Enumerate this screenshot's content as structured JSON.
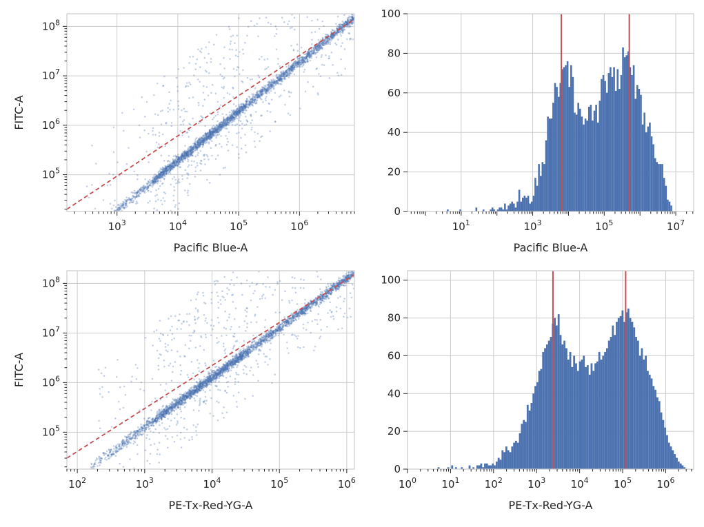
{
  "colors": {
    "primary": "#4c72b0",
    "reference": "#c44e52",
    "grid": "#cccccc",
    "text": "#262626"
  },
  "chart_data": [
    {
      "type": "scatter",
      "xlabel": "Pacific Blue-A",
      "ylabel": "FITC-A",
      "xscale": "log",
      "yscale": "log",
      "xlim": [
        150,
        8000000
      ],
      "ylim": [
        18000,
        180000000
      ],
      "x_tick_labels": [
        {
          "v": 1000,
          "e": "3"
        },
        {
          "v": 10000,
          "e": "4"
        },
        {
          "v": 100000,
          "e": "5"
        },
        {
          "v": 1000000,
          "e": "6"
        }
      ],
      "y_tick_labels": [
        {
          "v": 100000,
          "e": "5"
        },
        {
          "v": 1000000,
          "e": "6"
        },
        {
          "v": 10000000,
          "e": "7"
        },
        {
          "v": 100000000,
          "e": "8"
        }
      ],
      "fit_line": {
        "style": "dashed",
        "points": [
          [
            150,
            20000
          ],
          [
            8000000,
            140000000
          ]
        ]
      },
      "cloud": {
        "main_x_range": [
          300,
          8000000
        ],
        "y_over_x_ratio": 19,
        "spread_dex": 0.13,
        "scatter_dex": 0.55,
        "n_points": 3600,
        "seed": 7
      },
      "grid": true
    },
    {
      "type": "bar",
      "subtype": "histogram",
      "xlabel": "Pacific Blue-A",
      "ylabel": "",
      "xscale": "log",
      "xlim_exp": [
        -0.5,
        7.5
      ],
      "ylim": [
        0,
        100
      ],
      "x_tick_labels": [
        {
          "v": 1,
          "e": "1"
        },
        {
          "v": 3,
          "e": "3"
        },
        {
          "v": 5,
          "e": "5"
        },
        {
          "v": 7,
          "e": "7"
        }
      ],
      "y_ticks": [
        0,
        20,
        40,
        60,
        80,
        100
      ],
      "bins": {
        "start_exp": 0.6,
        "width_exp": 0.05,
        "values": [
          1,
          0,
          0,
          0,
          0,
          0,
          0,
          1,
          0,
          0,
          0,
          0,
          0,
          0,
          0,
          0,
          2,
          0,
          0,
          0,
          1,
          0,
          0,
          0,
          1,
          2,
          1,
          0,
          1,
          2,
          2,
          1,
          4,
          1,
          3,
          4,
          5,
          4,
          2,
          5,
          11,
          5,
          7,
          8,
          7,
          8,
          4,
          5,
          8,
          17,
          13,
          24,
          18,
          25,
          24,
          36,
          48,
          47,
          47,
          55,
          65,
          63,
          58,
          65,
          72,
          73,
          74,
          76,
          63,
          74,
          68,
          50,
          49,
          55,
          52,
          48,
          44,
          47,
          46,
          53,
          54,
          46,
          51,
          54,
          45,
          56,
          67,
          69,
          66,
          60,
          70,
          73,
          68,
          73,
          61,
          72,
          62,
          69,
          83,
          78,
          79,
          81,
          73,
          69,
          74,
          57,
          64,
          62,
          59,
          44,
          50,
          40,
          43,
          45,
          38,
          34,
          27,
          25,
          24,
          24,
          24,
          17,
          13,
          6,
          5,
          3,
          0,
          0
        ]
      },
      "reference_lines_exp": [
        3.8,
        5.7
      ],
      "grid": true
    },
    {
      "type": "scatter",
      "xlabel": "PE-Tx-Red-YG-A",
      "ylabel": "FITC-A",
      "xscale": "log",
      "yscale": "log",
      "xlim": [
        70,
        1300000
      ],
      "ylim": [
        18000,
        180000000
      ],
      "x_tick_labels": [
        {
          "v": 100,
          "e": "2"
        },
        {
          "v": 1000,
          "e": "3"
        },
        {
          "v": 10000,
          "e": "4"
        },
        {
          "v": 100000,
          "e": "5"
        },
        {
          "v": 1000000,
          "e": "6"
        }
      ],
      "y_tick_labels": [
        {
          "v": 100000,
          "e": "5"
        },
        {
          "v": 1000000,
          "e": "6"
        },
        {
          "v": 10000000,
          "e": "7"
        },
        {
          "v": 100000000,
          "e": "8"
        }
      ],
      "fit_line": {
        "style": "dashed",
        "points": [
          [
            70,
            30000
          ],
          [
            1300000,
            150000000
          ]
        ]
      },
      "cloud": {
        "main_x_range": [
          150,
          1300000
        ],
        "y_over_x_ratio": 125,
        "spread_dex": 0.13,
        "scatter_dex": 0.55,
        "n_points": 3600,
        "seed": 11
      },
      "grid": true
    },
    {
      "type": "bar",
      "subtype": "histogram",
      "xlabel": "PE-Tx-Red-YG-A",
      "ylabel": "",
      "xscale": "log",
      "xlim_exp": [
        0,
        6.65
      ],
      "ylim": [
        0,
        105
      ],
      "x_tick_labels": [
        {
          "v": 0,
          "e": "0"
        },
        {
          "v": 1,
          "e": "1"
        },
        {
          "v": 2,
          "e": "2"
        },
        {
          "v": 3,
          "e": "3"
        },
        {
          "v": 4,
          "e": "4"
        },
        {
          "v": 5,
          "e": "5"
        },
        {
          "v": 6,
          "e": "6"
        }
      ],
      "y_ticks": [
        0,
        20,
        40,
        60,
        80,
        100
      ],
      "bins": {
        "start_exp": 0.7,
        "width_exp": 0.045,
        "values": [
          1,
          0,
          0,
          0,
          0,
          1,
          0,
          2,
          0,
          1,
          0,
          0,
          1,
          0,
          0,
          0,
          2,
          0,
          1,
          0,
          2,
          2,
          3,
          1,
          3,
          3,
          2,
          2,
          3,
          2,
          4,
          6,
          5,
          10,
          9,
          12,
          10,
          9,
          12,
          14,
          15,
          14,
          19,
          24,
          26,
          25,
          34,
          31,
          35,
          40,
          44,
          46,
          52,
          53,
          62,
          64,
          66,
          68,
          70,
          77,
          80,
          76,
          82,
          71,
          66,
          68,
          64,
          58,
          62,
          54,
          60,
          56,
          52,
          57,
          58,
          60,
          54,
          55,
          50,
          56,
          52,
          56,
          57,
          62,
          58,
          60,
          62,
          64,
          68,
          70,
          76,
          71,
          78,
          80,
          81,
          84,
          78,
          83,
          85,
          80,
          78,
          75,
          70,
          68,
          60,
          64,
          58,
          60,
          52,
          50,
          48,
          44,
          42,
          38,
          36,
          30,
          26,
          22,
          18,
          14,
          12,
          10,
          8,
          6,
          4,
          3,
          2,
          1
        ]
      },
      "reference_lines_exp": [
        3.38,
        5.07
      ],
      "grid": true
    }
  ]
}
